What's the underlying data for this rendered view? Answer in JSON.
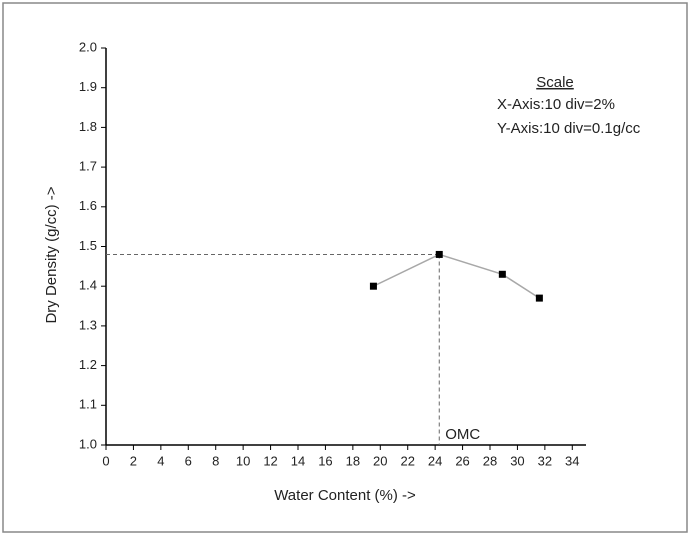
{
  "chart_data": {
    "type": "line",
    "x_label": "Water Content (%) ->",
    "y_label": "Dry Density (g/cc) ->",
    "series": [
      {
        "color": "#000000",
        "line_color": "#a8a8a8",
        "marker": "square",
        "x": [
          19.5,
          24.3,
          28.9,
          31.6
        ],
        "values": [
          1.4,
          1.48,
          1.43,
          1.37
        ]
      }
    ],
    "xlim": [
      0,
      35
    ],
    "ylim": [
      1.0,
      2.0
    ],
    "xticks": [
      0,
      2,
      4,
      6,
      8,
      10,
      12,
      14,
      16,
      18,
      20,
      22,
      24,
      26,
      28,
      30,
      32,
      34
    ],
    "yticks": [
      {
        "value": 1.0,
        "label": "1.0"
      },
      1.1,
      1.2,
      1.3,
      1.4,
      1.5,
      1.6,
      1.7,
      1.8,
      1.9,
      {
        "value": 2.0,
        "label": "2.0"
      }
    ],
    "annotations": [
      {
        "text": "OMC"
      }
    ],
    "scale_note": {
      "title": "Scale",
      "lines": [
        "X-Axis:10 div=2%",
        "Y-Axis:10 div=0.1g/cc"
      ]
    }
  }
}
